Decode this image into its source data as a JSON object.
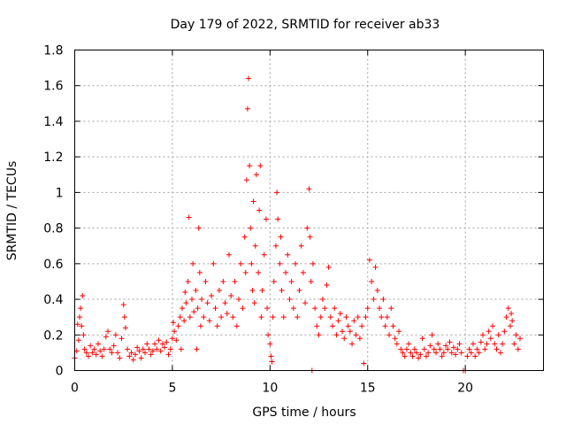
{
  "chart_data": {
    "type": "scatter",
    "title": "Day 179 of 2022, SRMTID for receiver ab33",
    "xlabel": "GPS time / hours",
    "ylabel": "SRMTID / TECUs",
    "xlim": [
      0,
      24
    ],
    "ylim": [
      0,
      1.8
    ],
    "xticks": [
      0,
      5,
      10,
      15,
      20
    ],
    "xtick_labels": [
      "0",
      "5",
      "10",
      "15",
      "20"
    ],
    "yticks": [
      0,
      0.2,
      0.4,
      0.6,
      0.8,
      1,
      1.2,
      1.4,
      1.6,
      1.8
    ],
    "ytick_labels": [
      "0",
      "0.2",
      "0.4",
      "0.6",
      "0.8",
      "1",
      "1.2",
      "1.4",
      "1.6",
      "1.8"
    ],
    "grid": true,
    "marker": "+",
    "color": "#ff0000",
    "series": [
      {
        "name": "SRMTID",
        "points": [
          [
            0.0,
            0.07
          ],
          [
            0.1,
            0.11
          ],
          [
            0.15,
            0.26
          ],
          [
            0.2,
            0.17
          ],
          [
            0.25,
            0.3
          ],
          [
            0.3,
            0.35
          ],
          [
            0.35,
            0.25
          ],
          [
            0.4,
            0.42
          ],
          [
            0.45,
            0.2
          ],
          [
            0.5,
            0.12
          ],
          [
            0.6,
            0.1
          ],
          [
            0.7,
            0.08
          ],
          [
            0.8,
            0.14
          ],
          [
            0.9,
            0.1
          ],
          [
            1.0,
            0.12
          ],
          [
            1.1,
            0.09
          ],
          [
            1.2,
            0.15
          ],
          [
            1.3,
            0.11
          ],
          [
            1.4,
            0.08
          ],
          [
            1.5,
            0.12
          ],
          [
            1.6,
            0.19
          ],
          [
            1.7,
            0.22
          ],
          [
            1.8,
            0.12
          ],
          [
            1.9,
            0.1
          ],
          [
            2.0,
            0.14
          ],
          [
            2.1,
            0.2
          ],
          [
            2.2,
            0.1
          ],
          [
            2.3,
            0.07
          ],
          [
            2.4,
            0.18
          ],
          [
            2.5,
            0.37
          ],
          [
            2.55,
            0.3
          ],
          [
            2.6,
            0.24
          ],
          [
            2.7,
            0.12
          ],
          [
            2.8,
            0.08
          ],
          [
            2.9,
            0.1
          ],
          [
            3.0,
            0.06
          ],
          [
            3.1,
            0.09
          ],
          [
            3.2,
            0.13
          ],
          [
            3.3,
            0.11
          ],
          [
            3.4,
            0.07
          ],
          [
            3.5,
            0.12
          ],
          [
            3.6,
            0.1
          ],
          [
            3.7,
            0.15
          ],
          [
            3.8,
            0.12
          ],
          [
            3.9,
            0.09
          ],
          [
            4.0,
            0.11
          ],
          [
            4.1,
            0.15
          ],
          [
            4.2,
            0.12
          ],
          [
            4.3,
            0.17
          ],
          [
            4.4,
            0.11
          ],
          [
            4.5,
            0.15
          ],
          [
            4.6,
            0.13
          ],
          [
            4.7,
            0.16
          ],
          [
            4.8,
            0.09
          ],
          [
            4.9,
            0.12
          ],
          [
            5.0,
            0.18
          ],
          [
            5.05,
            0.27
          ],
          [
            5.1,
            0.22
          ],
          [
            5.2,
            0.17
          ],
          [
            5.3,
            0.25
          ],
          [
            5.4,
            0.3
          ],
          [
            5.45,
            0.12
          ],
          [
            5.5,
            0.35
          ],
          [
            5.6,
            0.28
          ],
          [
            5.65,
            0.44
          ],
          [
            5.7,
            0.38
          ],
          [
            5.8,
            0.5
          ],
          [
            5.85,
            0.86
          ],
          [
            5.9,
            0.3
          ],
          [
            6.0,
            0.4
          ],
          [
            6.05,
            0.6
          ],
          [
            6.1,
            0.33
          ],
          [
            6.2,
            0.45
          ],
          [
            6.25,
            0.12
          ],
          [
            6.3,
            0.35
          ],
          [
            6.35,
            0.8
          ],
          [
            6.4,
            0.55
          ],
          [
            6.45,
            0.25
          ],
          [
            6.5,
            0.4
          ],
          [
            6.6,
            0.3
          ],
          [
            6.7,
            0.5
          ],
          [
            6.8,
            0.38
          ],
          [
            6.9,
            0.28
          ],
          [
            7.0,
            0.42
          ],
          [
            7.1,
            0.6
          ],
          [
            7.2,
            0.35
          ],
          [
            7.3,
            0.25
          ],
          [
            7.4,
            0.45
          ],
          [
            7.5,
            0.3
          ],
          [
            7.6,
            0.5
          ],
          [
            7.7,
            0.38
          ],
          [
            7.8,
            0.32
          ],
          [
            7.9,
            0.65
          ],
          [
            8.0,
            0.42
          ],
          [
            8.1,
            0.3
          ],
          [
            8.2,
            0.5
          ],
          [
            8.3,
            0.25
          ],
          [
            8.4,
            0.4
          ],
          [
            8.5,
            0.6
          ],
          [
            8.6,
            0.35
          ],
          [
            8.7,
            0.75
          ],
          [
            8.75,
            0.55
          ],
          [
            8.8,
            1.07
          ],
          [
            8.85,
            1.47
          ],
          [
            8.9,
            1.64
          ],
          [
            8.95,
            1.15
          ],
          [
            9.0,
            0.8
          ],
          [
            9.05,
            0.6
          ],
          [
            9.1,
            0.45
          ],
          [
            9.15,
            0.95
          ],
          [
            9.2,
            0.38
          ],
          [
            9.25,
            0.7
          ],
          [
            9.3,
            1.1
          ],
          [
            9.4,
            0.55
          ],
          [
            9.45,
            0.9
          ],
          [
            9.5,
            1.15
          ],
          [
            9.55,
            0.3
          ],
          [
            9.6,
            0.45
          ],
          [
            9.7,
            0.65
          ],
          [
            9.8,
            0.85
          ],
          [
            9.85,
            0.35
          ],
          [
            9.9,
            0.2
          ],
          [
            10.0,
            0.15
          ],
          [
            10.05,
            0.08
          ],
          [
            10.1,
            0.05
          ],
          [
            10.15,
            0.3
          ],
          [
            10.2,
            0.5
          ],
          [
            10.3,
            0.7
          ],
          [
            10.35,
            1.0
          ],
          [
            10.4,
            0.85
          ],
          [
            10.5,
            0.6
          ],
          [
            10.55,
            0.75
          ],
          [
            10.6,
            0.45
          ],
          [
            10.7,
            0.3
          ],
          [
            10.8,
            0.55
          ],
          [
            10.9,
            0.65
          ],
          [
            11.0,
            0.4
          ],
          [
            11.1,
            0.5
          ],
          [
            11.2,
            0.35
          ],
          [
            11.3,
            0.6
          ],
          [
            11.4,
            0.3
          ],
          [
            11.5,
            0.45
          ],
          [
            11.6,
            0.7
          ],
          [
            11.7,
            0.55
          ],
          [
            11.8,
            0.38
          ],
          [
            11.9,
            0.8
          ],
          [
            12.0,
            1.02
          ],
          [
            12.05,
            0.75
          ],
          [
            12.1,
            0.5
          ],
          [
            12.15,
            0.0
          ],
          [
            12.2,
            0.6
          ],
          [
            12.3,
            0.35
          ],
          [
            12.4,
            0.25
          ],
          [
            12.5,
            0.2
          ],
          [
            12.6,
            0.3
          ],
          [
            12.7,
            0.4
          ],
          [
            12.8,
            0.35
          ],
          [
            12.9,
            0.48
          ],
          [
            13.0,
            0.58
          ],
          [
            13.1,
            0.3
          ],
          [
            13.2,
            0.25
          ],
          [
            13.3,
            0.35
          ],
          [
            13.4,
            0.2
          ],
          [
            13.5,
            0.28
          ],
          [
            13.6,
            0.32
          ],
          [
            13.7,
            0.22
          ],
          [
            13.8,
            0.18
          ],
          [
            13.9,
            0.3
          ],
          [
            14.0,
            0.25
          ],
          [
            14.1,
            0.22
          ],
          [
            14.2,
            0.15
          ],
          [
            14.3,
            0.28
          ],
          [
            14.4,
            0.2
          ],
          [
            14.5,
            0.3
          ],
          [
            14.6,
            0.18
          ],
          [
            14.7,
            0.25
          ],
          [
            14.8,
            0.04
          ],
          [
            14.9,
            0.3
          ],
          [
            15.0,
            0.35
          ],
          [
            15.1,
            0.62
          ],
          [
            15.2,
            0.5
          ],
          [
            15.3,
            0.4
          ],
          [
            15.4,
            0.58
          ],
          [
            15.5,
            0.45
          ],
          [
            15.6,
            0.35
          ],
          [
            15.7,
            0.3
          ],
          [
            15.8,
            0.4
          ],
          [
            15.9,
            0.25
          ],
          [
            16.0,
            0.3
          ],
          [
            16.1,
            0.2
          ],
          [
            16.2,
            0.35
          ],
          [
            16.3,
            0.25
          ],
          [
            16.4,
            0.18
          ],
          [
            16.5,
            0.15
          ],
          [
            16.6,
            0.22
          ],
          [
            16.7,
            0.12
          ],
          [
            16.8,
            0.1
          ],
          [
            16.9,
            0.08
          ],
          [
            17.0,
            0.12
          ],
          [
            17.1,
            0.15
          ],
          [
            17.2,
            0.1
          ],
          [
            17.3,
            0.08
          ],
          [
            17.4,
            0.12
          ],
          [
            17.5,
            0.1
          ],
          [
            17.6,
            0.07
          ],
          [
            17.7,
            0.09
          ],
          [
            17.8,
            0.18
          ],
          [
            17.9,
            0.12
          ],
          [
            18.0,
            0.08
          ],
          [
            18.1,
            0.1
          ],
          [
            18.2,
            0.14
          ],
          [
            18.3,
            0.2
          ],
          [
            18.4,
            0.12
          ],
          [
            18.5,
            0.1
          ],
          [
            18.6,
            0.15
          ],
          [
            18.7,
            0.12
          ],
          [
            18.8,
            0.08
          ],
          [
            18.9,
            0.1
          ],
          [
            19.0,
            0.14
          ],
          [
            19.1,
            0.12
          ],
          [
            19.2,
            0.16
          ],
          [
            19.3,
            0.1
          ],
          [
            19.4,
            0.13
          ],
          [
            19.5,
            0.09
          ],
          [
            19.6,
            0.12
          ],
          [
            19.7,
            0.15
          ],
          [
            19.8,
            0.1
          ],
          [
            19.9,
            0.0
          ],
          [
            20.0,
            0.0
          ],
          [
            20.1,
            0.08
          ],
          [
            20.2,
            0.12
          ],
          [
            20.3,
            0.1
          ],
          [
            20.4,
            0.15
          ],
          [
            20.5,
            0.08
          ],
          [
            20.6,
            0.12
          ],
          [
            20.7,
            0.1
          ],
          [
            20.8,
            0.16
          ],
          [
            20.9,
            0.2
          ],
          [
            21.0,
            0.12
          ],
          [
            21.1,
            0.15
          ],
          [
            21.2,
            0.22
          ],
          [
            21.3,
            0.18
          ],
          [
            21.4,
            0.25
          ],
          [
            21.5,
            0.15
          ],
          [
            21.6,
            0.12
          ],
          [
            21.7,
            0.2
          ],
          [
            21.8,
            0.1
          ],
          [
            21.9,
            0.15
          ],
          [
            22.0,
            0.22
          ],
          [
            22.1,
            0.3
          ],
          [
            22.2,
            0.35
          ],
          [
            22.3,
            0.25
          ],
          [
            22.35,
            0.32
          ],
          [
            22.4,
            0.28
          ],
          [
            22.5,
            0.15
          ],
          [
            22.6,
            0.2
          ],
          [
            22.7,
            0.12
          ],
          [
            22.8,
            0.18
          ]
        ]
      }
    ]
  }
}
